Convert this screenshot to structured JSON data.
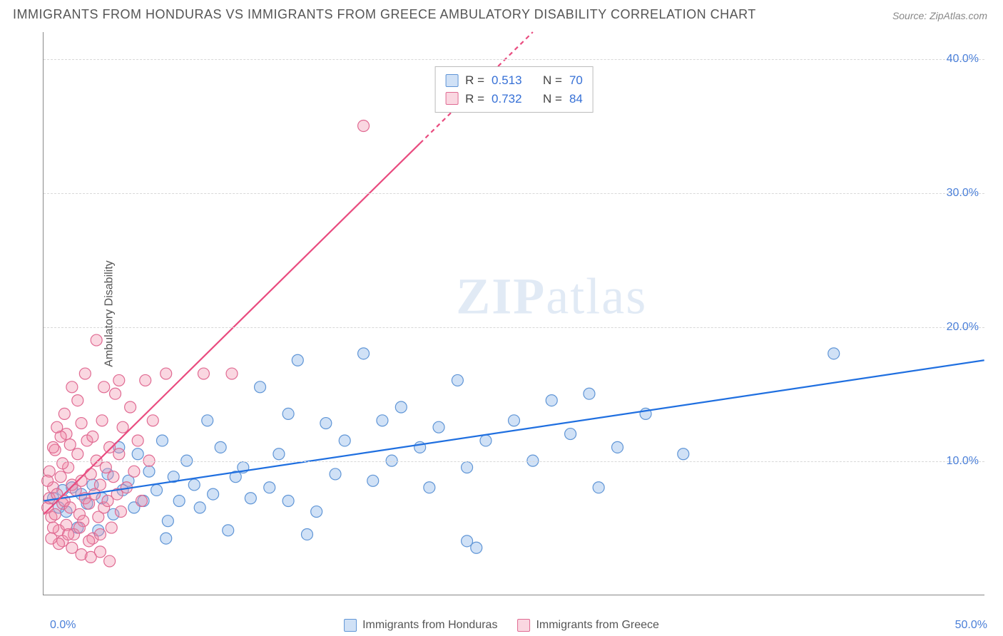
{
  "title": "IMMIGRANTS FROM HONDURAS VS IMMIGRANTS FROM GREECE AMBULATORY DISABILITY CORRELATION CHART",
  "source": "Source: ZipAtlas.com",
  "ylabel": "Ambulatory Disability",
  "watermark_a": "ZIP",
  "watermark_b": "atlas",
  "chart": {
    "type": "scatter",
    "xlim": [
      0,
      50
    ],
    "ylim": [
      0,
      42
    ],
    "yticks": [
      10,
      20,
      30,
      40
    ],
    "ytick_labels": [
      "10.0%",
      "20.0%",
      "30.0%",
      "40.0%"
    ],
    "xtick_left": "0.0%",
    "xtick_right": "50.0%",
    "grid_color": "#d8d8d8",
    "background_color": "#ffffff",
    "axis_color": "#888888",
    "tick_label_color": "#4a7fd8",
    "marker_radius": 8,
    "marker_stroke_width": 1.2,
    "trend_line_width": 2.2
  },
  "series": [
    {
      "name": "Immigrants from Honduras",
      "color_fill": "rgba(120,170,230,0.35)",
      "color_stroke": "#5f95d6",
      "trend_color": "#1f6fe0",
      "trend": {
        "x1": 0,
        "y1": 7.0,
        "x2": 50,
        "y2": 17.5,
        "dash_from_x": null
      },
      "R": "0.513",
      "N": "70",
      "points": [
        [
          0.5,
          7.2
        ],
        [
          0.8,
          6.5
        ],
        [
          1.0,
          7.8
        ],
        [
          1.2,
          6.2
        ],
        [
          1.5,
          8.0
        ],
        [
          1.8,
          5.0
        ],
        [
          2.0,
          7.5
        ],
        [
          2.3,
          6.8
        ],
        [
          2.6,
          8.2
        ],
        [
          2.9,
          4.8
        ],
        [
          3.1,
          7.2
        ],
        [
          3.4,
          9.0
        ],
        [
          3.7,
          6.0
        ],
        [
          4.0,
          11.0
        ],
        [
          4.2,
          7.8
        ],
        [
          4.5,
          8.5
        ],
        [
          4.8,
          6.5
        ],
        [
          5.0,
          10.5
        ],
        [
          5.3,
          7.0
        ],
        [
          5.6,
          9.2
        ],
        [
          6.0,
          7.8
        ],
        [
          6.3,
          11.5
        ],
        [
          6.6,
          5.5
        ],
        [
          6.9,
          8.8
        ],
        [
          7.2,
          7.0
        ],
        [
          7.6,
          10.0
        ],
        [
          8.0,
          8.2
        ],
        [
          8.3,
          6.5
        ],
        [
          8.7,
          13.0
        ],
        [
          9.0,
          7.5
        ],
        [
          9.4,
          11.0
        ],
        [
          9.8,
          4.8
        ],
        [
          10.2,
          8.8
        ],
        [
          10.6,
          9.5
        ],
        [
          11.0,
          7.2
        ],
        [
          11.5,
          15.5
        ],
        [
          12.0,
          8.0
        ],
        [
          12.5,
          10.5
        ],
        [
          13.0,
          13.5
        ],
        [
          13.5,
          17.5
        ],
        [
          13.0,
          7.0
        ],
        [
          14.5,
          6.2
        ],
        [
          15.0,
          12.8
        ],
        [
          15.5,
          9.0
        ],
        [
          16.0,
          11.5
        ],
        [
          17.0,
          18.0
        ],
        [
          17.5,
          8.5
        ],
        [
          18.0,
          13.0
        ],
        [
          18.5,
          10.0
        ],
        [
          19.0,
          14.0
        ],
        [
          20.0,
          11.0
        ],
        [
          20.5,
          8.0
        ],
        [
          21.0,
          12.5
        ],
        [
          22.0,
          16.0
        ],
        [
          22.5,
          9.5
        ],
        [
          23.0,
          3.5
        ],
        [
          23.5,
          11.5
        ],
        [
          25.0,
          13.0
        ],
        [
          26.0,
          10.0
        ],
        [
          27.0,
          14.5
        ],
        [
          28.0,
          12.0
        ],
        [
          29.0,
          15.0
        ],
        [
          29.5,
          8.0
        ],
        [
          22.5,
          4.0
        ],
        [
          30.5,
          11.0
        ],
        [
          32.0,
          13.5
        ],
        [
          34.0,
          10.5
        ],
        [
          42.0,
          18.0
        ],
        [
          14.0,
          4.5
        ],
        [
          6.5,
          4.2
        ]
      ]
    },
    {
      "name": "Immigrants from Greece",
      "color_fill": "rgba(240,140,170,0.35)",
      "color_stroke": "#e06a92",
      "trend_color": "#e94b7f",
      "trend": {
        "x1": 0,
        "y1": 6.0,
        "x2": 26,
        "y2": 42.0,
        "dash_from_x": 20
      },
      "R": "0.732",
      "N": "84",
      "points": [
        [
          0.2,
          6.5
        ],
        [
          0.3,
          7.2
        ],
        [
          0.4,
          5.8
        ],
        [
          0.5,
          8.0
        ],
        [
          0.6,
          6.0
        ],
        [
          0.7,
          7.5
        ],
        [
          0.8,
          4.8
        ],
        [
          0.9,
          8.8
        ],
        [
          1.0,
          6.8
        ],
        [
          1.1,
          7.0
        ],
        [
          1.2,
          5.2
        ],
        [
          1.3,
          9.5
        ],
        [
          1.4,
          6.5
        ],
        [
          1.5,
          8.2
        ],
        [
          1.6,
          4.5
        ],
        [
          1.7,
          7.8
        ],
        [
          1.8,
          10.5
        ],
        [
          1.9,
          6.0
        ],
        [
          2.0,
          8.5
        ],
        [
          2.1,
          5.5
        ],
        [
          2.2,
          7.2
        ],
        [
          2.3,
          11.5
        ],
        [
          2.4,
          6.8
        ],
        [
          2.5,
          9.0
        ],
        [
          2.6,
          4.2
        ],
        [
          2.7,
          7.5
        ],
        [
          2.8,
          10.0
        ],
        [
          2.9,
          5.8
        ],
        [
          3.0,
          8.2
        ],
        [
          3.1,
          13.0
        ],
        [
          3.2,
          6.5
        ],
        [
          3.3,
          9.5
        ],
        [
          3.4,
          7.0
        ],
        [
          3.5,
          11.0
        ],
        [
          3.6,
          5.0
        ],
        [
          3.7,
          8.8
        ],
        [
          3.8,
          15.0
        ],
        [
          3.9,
          7.5
        ],
        [
          4.0,
          10.5
        ],
        [
          4.1,
          6.2
        ],
        [
          4.2,
          12.5
        ],
        [
          4.4,
          8.0
        ],
        [
          4.6,
          14.0
        ],
        [
          4.8,
          9.2
        ],
        [
          5.0,
          11.5
        ],
        [
          5.2,
          7.0
        ],
        [
          5.4,
          16.0
        ],
        [
          5.6,
          10.0
        ],
        [
          5.8,
          13.0
        ],
        [
          1.0,
          4.0
        ],
        [
          1.5,
          3.5
        ],
        [
          2.0,
          3.0
        ],
        [
          2.5,
          2.8
        ],
        [
          3.0,
          3.2
        ],
        [
          3.5,
          2.5
        ],
        [
          0.5,
          5.0
        ],
        [
          0.8,
          3.8
        ],
        [
          1.2,
          12.0
        ],
        [
          1.8,
          14.5
        ],
        [
          2.2,
          16.5
        ],
        [
          4.0,
          16.0
        ],
        [
          6.5,
          16.5
        ],
        [
          8.5,
          16.5
        ],
        [
          10.0,
          16.5
        ],
        [
          17.0,
          35.0
        ],
        [
          0.3,
          9.2
        ],
        [
          0.6,
          10.8
        ],
        [
          0.9,
          11.8
        ],
        [
          1.1,
          13.5
        ],
        [
          2.8,
          19.0
        ],
        [
          3.2,
          15.5
        ],
        [
          1.5,
          15.5
        ],
        [
          0.4,
          4.2
        ],
        [
          0.7,
          12.5
        ],
        [
          1.3,
          4.5
        ],
        [
          1.9,
          5.0
        ],
        [
          2.4,
          4.0
        ],
        [
          0.2,
          8.5
        ],
        [
          0.5,
          11.0
        ],
        [
          1.0,
          9.8
        ],
        [
          1.4,
          11.2
        ],
        [
          2.0,
          12.8
        ],
        [
          2.6,
          11.8
        ],
        [
          3.0,
          4.5
        ]
      ]
    }
  ],
  "stats_labels": {
    "R": "R =",
    "N": "N ="
  },
  "bottom_legend": {
    "items": [
      {
        "label": "Immigrants from Honduras",
        "fill": "rgba(120,170,230,0.35)",
        "stroke": "#5f95d6"
      },
      {
        "label": "Immigrants from Greece",
        "fill": "rgba(240,140,170,0.35)",
        "stroke": "#e06a92"
      }
    ]
  }
}
